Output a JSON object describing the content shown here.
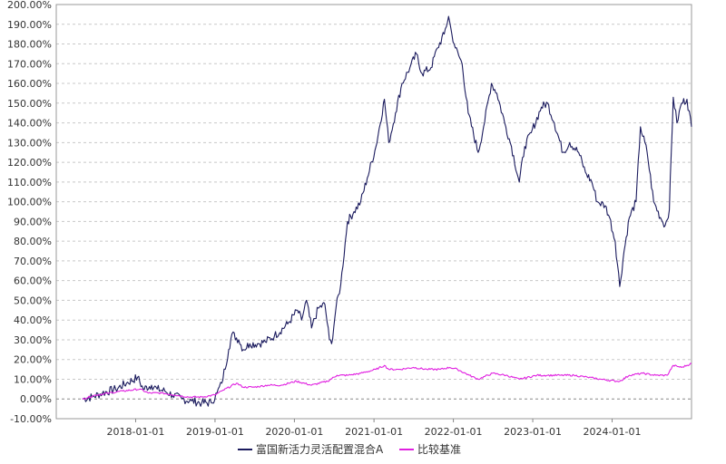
{
  "chart_data": {
    "type": "line",
    "xlim": [
      "2017-01-01",
      "2024-12-31"
    ],
    "ylim": [
      -10,
      200
    ],
    "y_ticks": [
      {
        "value": -10,
        "label": "-10.00%"
      },
      {
        "value": 0,
        "label": "0.00%"
      },
      {
        "value": 10,
        "label": "10.00%"
      },
      {
        "value": 20,
        "label": "20.00%"
      },
      {
        "value": 30,
        "label": "30.00%"
      },
      {
        "value": 40,
        "label": "40.00%"
      },
      {
        "value": 50,
        "label": "50.00%"
      },
      {
        "value": 60,
        "label": "60.00%"
      },
      {
        "value": 70,
        "label": "70.00%"
      },
      {
        "value": 80,
        "label": "80.00%"
      },
      {
        "value": 90,
        "label": "90.00%"
      },
      {
        "value": 100,
        "label": "100.00%"
      },
      {
        "value": 110,
        "label": "110.00%"
      },
      {
        "value": 120,
        "label": "120.00%"
      },
      {
        "value": 130,
        "label": "130.00%"
      },
      {
        "value": 140,
        "label": "140.00%"
      },
      {
        "value": 150,
        "label": "150.00%"
      },
      {
        "value": 160,
        "label": "160.00%"
      },
      {
        "value": 170,
        "label": "170.00%"
      },
      {
        "value": 180,
        "label": "180.00%"
      },
      {
        "value": 190,
        "label": "190.00%"
      },
      {
        "value": 200,
        "label": "200.00%"
      }
    ],
    "x_ticks": [
      {
        "value": "2018-01-01",
        "label": "2018-01-01"
      },
      {
        "value": "2019-01-01",
        "label": "2019-01-01"
      },
      {
        "value": "2020-01-01",
        "label": "2020-01-01"
      },
      {
        "value": "2021-01-01",
        "label": "2021-01-01"
      },
      {
        "value": "2022-01-01",
        "label": "2022-01-01"
      },
      {
        "value": "2023-01-01",
        "label": "2023-01-01"
      },
      {
        "value": "2024-01-01",
        "label": "2024-01-01"
      }
    ],
    "grid": true,
    "legend": "bottom-center",
    "series": [
      {
        "name": "富国新活力灵活配置混合A",
        "color": "#1b1b5e",
        "points": [
          [
            "2017-05-01",
            0
          ],
          [
            "2017-06-15",
            1
          ],
          [
            "2017-08-01",
            3
          ],
          [
            "2017-10-01",
            5
          ],
          [
            "2017-11-20",
            8
          ],
          [
            "2018-01-10",
            11
          ],
          [
            "2018-02-05",
            5
          ],
          [
            "2018-03-15",
            7
          ],
          [
            "2018-04-10",
            5
          ],
          [
            "2018-05-15",
            4
          ],
          [
            "2018-06-20",
            2
          ],
          [
            "2018-08-01",
            0
          ],
          [
            "2018-09-15",
            -1
          ],
          [
            "2018-11-01",
            -2
          ],
          [
            "2018-12-15",
            -2
          ],
          [
            "2019-01-10",
            3
          ],
          [
            "2019-02-01",
            8
          ],
          [
            "2019-03-05",
            25
          ],
          [
            "2019-03-20",
            33
          ],
          [
            "2019-04-20",
            30
          ],
          [
            "2019-05-10",
            25
          ],
          [
            "2019-06-10",
            28
          ],
          [
            "2019-07-15",
            28
          ],
          [
            "2019-08-20",
            29
          ],
          [
            "2019-10-01",
            32
          ],
          [
            "2019-12-01",
            38
          ],
          [
            "2020-01-15",
            45
          ],
          [
            "2020-02-03",
            40
          ],
          [
            "2020-02-25",
            50
          ],
          [
            "2020-03-20",
            36
          ],
          [
            "2020-04-20",
            46
          ],
          [
            "2020-05-20",
            48
          ],
          [
            "2020-06-10",
            30
          ],
          [
            "2020-06-20",
            28
          ],
          [
            "2020-07-10",
            46
          ],
          [
            "2020-08-01",
            58
          ],
          [
            "2020-09-01",
            90
          ],
          [
            "2020-10-01",
            95
          ],
          [
            "2020-11-01",
            100
          ],
          [
            "2020-12-01",
            112
          ],
          [
            "2021-01-10",
            128
          ],
          [
            "2021-02-18",
            152
          ],
          [
            "2021-03-10",
            130
          ],
          [
            "2021-04-10",
            145
          ],
          [
            "2021-05-10",
            160
          ],
          [
            "2021-06-15",
            168
          ],
          [
            "2021-07-15",
            175
          ],
          [
            "2021-08-10",
            165
          ],
          [
            "2021-09-20",
            168
          ],
          [
            "2021-10-20",
            178
          ],
          [
            "2021-11-20",
            185
          ],
          [
            "2021-12-10",
            194
          ],
          [
            "2021-12-25",
            185
          ],
          [
            "2022-01-10",
            178
          ],
          [
            "2022-02-10",
            170
          ],
          [
            "2022-03-10",
            145
          ],
          [
            "2022-04-25",
            125
          ],
          [
            "2022-05-20",
            138
          ],
          [
            "2022-06-25",
            160
          ],
          [
            "2022-07-20",
            155
          ],
          [
            "2022-08-25",
            140
          ],
          [
            "2022-09-25",
            128
          ],
          [
            "2022-10-31",
            110
          ],
          [
            "2022-11-25",
            128
          ],
          [
            "2022-12-25",
            135
          ],
          [
            "2023-02-10",
            148
          ],
          [
            "2023-03-10",
            150
          ],
          [
            "2023-04-10",
            140
          ],
          [
            "2023-05-20",
            125
          ],
          [
            "2023-06-20",
            130
          ],
          [
            "2023-07-31",
            125
          ],
          [
            "2023-08-31",
            115
          ],
          [
            "2023-09-30",
            110
          ],
          [
            "2023-10-25",
            100
          ],
          [
            "2023-11-30",
            98
          ],
          [
            "2023-12-20",
            92
          ],
          [
            "2024-01-15",
            80
          ],
          [
            "2024-02-05",
            57
          ],
          [
            "2024-02-25",
            75
          ],
          [
            "2024-03-20",
            92
          ],
          [
            "2024-04-20",
            100
          ],
          [
            "2024-05-10",
            138
          ],
          [
            "2024-06-10",
            125
          ],
          [
            "2024-07-10",
            100
          ],
          [
            "2024-08-10",
            92
          ],
          [
            "2024-09-01",
            88
          ],
          [
            "2024-09-20",
            96
          ],
          [
            "2024-10-08",
            153
          ],
          [
            "2024-10-25",
            140
          ],
          [
            "2024-11-15",
            150
          ],
          [
            "2024-12-10",
            152
          ],
          [
            "2024-12-31",
            138
          ]
        ]
      },
      {
        "name": "比较基准",
        "color": "#e020e0",
        "points": [
          [
            "2017-05-01",
            0
          ],
          [
            "2017-07-01",
            2
          ],
          [
            "2017-09-01",
            3
          ],
          [
            "2017-11-01",
            4
          ],
          [
            "2018-01-20",
            5
          ],
          [
            "2018-03-01",
            3
          ],
          [
            "2018-05-01",
            3
          ],
          [
            "2018-07-01",
            2
          ],
          [
            "2018-09-01",
            1
          ],
          [
            "2018-11-01",
            1
          ],
          [
            "2018-12-31",
            2
          ],
          [
            "2019-02-01",
            4
          ],
          [
            "2019-04-10",
            8
          ],
          [
            "2019-05-10",
            6
          ],
          [
            "2019-07-01",
            6
          ],
          [
            "2019-09-01",
            7
          ],
          [
            "2019-11-01",
            7
          ],
          [
            "2020-01-10",
            9
          ],
          [
            "2020-03-20",
            7
          ],
          [
            "2020-06-01",
            9
          ],
          [
            "2020-07-15",
            12
          ],
          [
            "2020-09-01",
            12
          ],
          [
            "2020-11-01",
            13
          ],
          [
            "2021-01-10",
            15
          ],
          [
            "2021-02-18",
            17
          ],
          [
            "2021-03-10",
            15
          ],
          [
            "2021-05-01",
            15
          ],
          [
            "2021-07-01",
            16
          ],
          [
            "2021-09-01",
            15
          ],
          [
            "2021-11-01",
            15
          ],
          [
            "2021-12-15",
            16
          ],
          [
            "2022-01-20",
            15
          ],
          [
            "2022-03-15",
            12
          ],
          [
            "2022-04-25",
            10
          ],
          [
            "2022-06-30",
            13
          ],
          [
            "2022-08-31",
            12
          ],
          [
            "2022-10-31",
            10
          ],
          [
            "2023-01-20",
            12
          ],
          [
            "2023-03-10",
            12
          ],
          [
            "2023-05-10",
            12
          ],
          [
            "2023-07-10",
            12
          ],
          [
            "2023-09-10",
            11
          ],
          [
            "2023-11-10",
            10
          ],
          [
            "2024-01-20",
            9
          ],
          [
            "2024-02-05",
            9
          ],
          [
            "2024-03-20",
            12
          ],
          [
            "2024-05-20",
            13
          ],
          [
            "2024-07-20",
            12
          ],
          [
            "2024-09-10",
            12
          ],
          [
            "2024-10-08",
            17
          ],
          [
            "2024-11-15",
            16
          ],
          [
            "2024-12-31",
            18
          ]
        ]
      }
    ]
  }
}
